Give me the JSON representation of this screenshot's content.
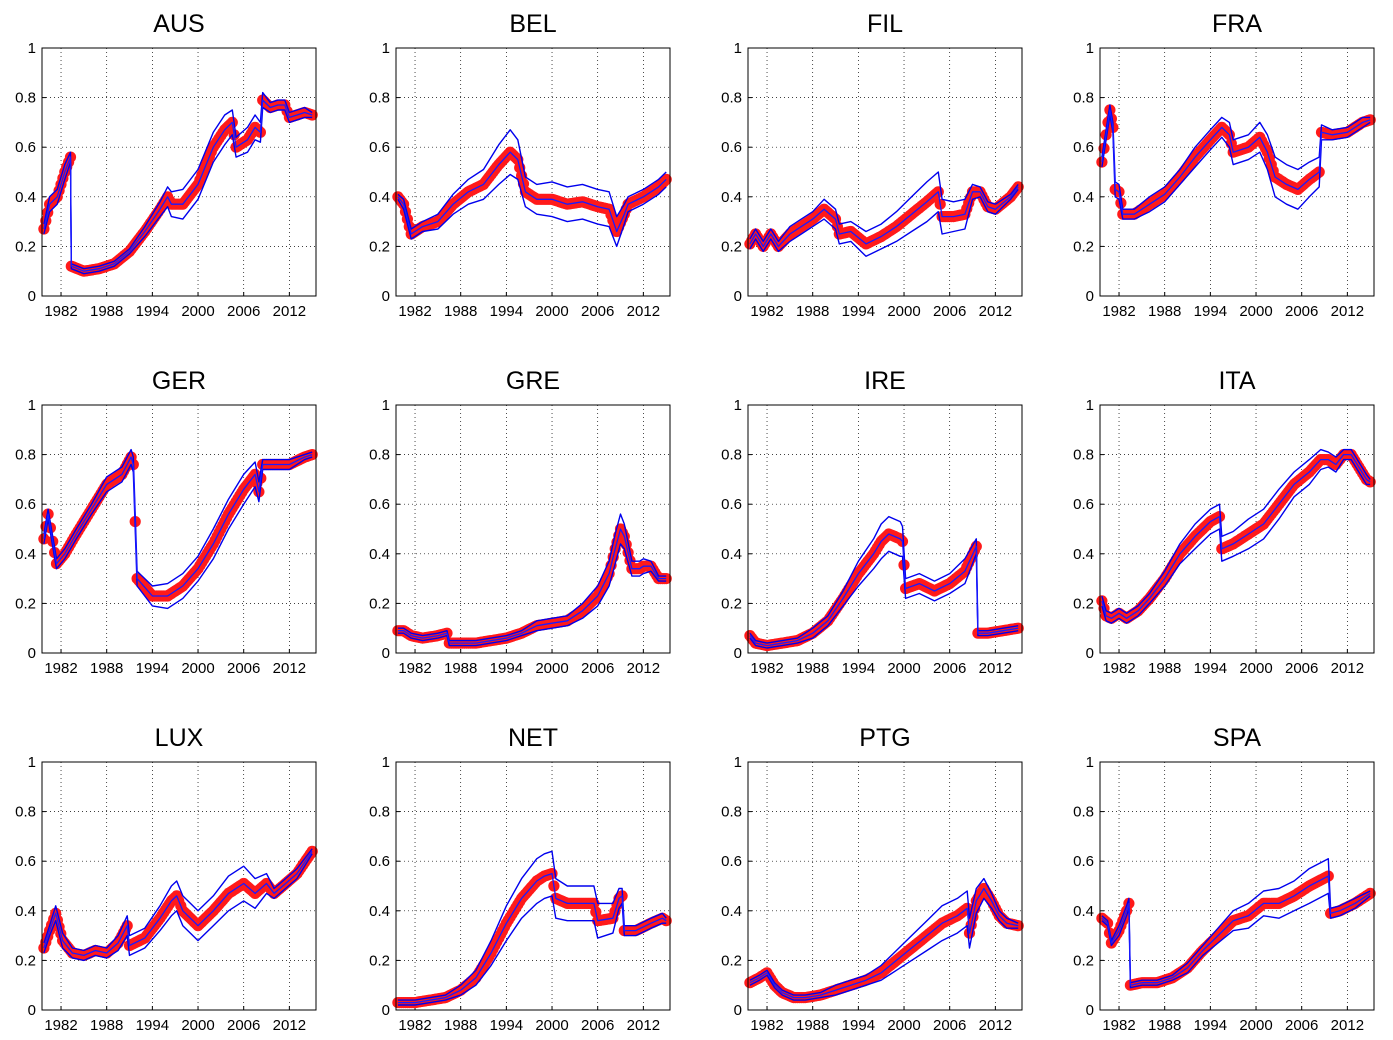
{
  "chart_data": [
    {
      "type": "line",
      "title": "AUS",
      "ylim": [
        0,
        1
      ],
      "xlim": [
        1979.5,
        2015.5
      ],
      "yticks": [
        "0",
        "0.2",
        "0.4",
        "0.6",
        "0.8",
        "1"
      ],
      "xticks": [
        "1982",
        "1988",
        "1994",
        "2000",
        "2006",
        "2012"
      ],
      "x": [
        1979.75,
        1980.5,
        1981.5,
        1982.5,
        1983.25,
        1983.35,
        1985,
        1987,
        1989,
        1991,
        1993,
        1995,
        1996,
        1996.5,
        1998,
        2000,
        2002,
        2003.5,
        2004.5,
        2005,
        2006.5,
        2007.5,
        2008.2,
        2008.5,
        2009.5,
        2010.5,
        2011.4,
        2012,
        2013,
        2014,
        2015
      ],
      "values": [
        0.27,
        0.37,
        0.4,
        0.5,
        0.56,
        0.12,
        0.1,
        0.11,
        0.13,
        0.18,
        0.26,
        0.35,
        0.4,
        0.37,
        0.37,
        0.45,
        0.6,
        0.67,
        0.7,
        0.6,
        0.63,
        0.68,
        0.66,
        0.79,
        0.76,
        0.77,
        0.77,
        0.72,
        0.73,
        0.74,
        0.73
      ],
      "band_width": [
        0.02,
        0.03,
        0.03,
        0.03,
        0.02,
        0.01,
        0.01,
        0.01,
        0.01,
        0.01,
        0.02,
        0.03,
        0.04,
        0.05,
        0.06,
        0.06,
        0.06,
        0.06,
        0.05,
        0.04,
        0.05,
        0.05,
        0.04,
        0.03,
        0.02,
        0.02,
        0.02,
        0.02,
        0.02,
        0.02,
        0.01
      ]
    },
    {
      "type": "line",
      "title": "BEL",
      "ylim": [
        0,
        1
      ],
      "xlim": [
        1979.5,
        2015.5
      ],
      "yticks": [
        "0",
        "0.2",
        "0.4",
        "0.6",
        "0.8",
        "1"
      ],
      "xticks": [
        "1982",
        "1988",
        "1994",
        "2000",
        "2006",
        "2012"
      ],
      "x": [
        1979.75,
        1980.5,
        1981.5,
        1983,
        1985,
        1987,
        1989,
        1991,
        1993,
        1994.5,
        1995.5,
        1996.5,
        1998,
        2000,
        2002,
        2004,
        2006,
        2007.5,
        2008.5,
        2009.5,
        2010,
        2012,
        2014,
        2015
      ],
      "values": [
        0.4,
        0.37,
        0.25,
        0.28,
        0.3,
        0.37,
        0.42,
        0.45,
        0.53,
        0.58,
        0.55,
        0.42,
        0.39,
        0.39,
        0.37,
        0.38,
        0.36,
        0.35,
        0.26,
        0.33,
        0.37,
        0.4,
        0.44,
        0.47
      ],
      "band_width": [
        0.01,
        0.02,
        0.02,
        0.02,
        0.03,
        0.04,
        0.05,
        0.06,
        0.08,
        0.09,
        0.08,
        0.06,
        0.06,
        0.07,
        0.07,
        0.07,
        0.07,
        0.07,
        0.06,
        0.04,
        0.03,
        0.03,
        0.03,
        0.03
      ]
    },
    {
      "type": "line",
      "title": "FIL",
      "ylim": [
        0,
        1
      ],
      "xlim": [
        1979.5,
        2015.5
      ],
      "yticks": [
        "0",
        "0.2",
        "0.4",
        "0.6",
        "0.8",
        "1"
      ],
      "xticks": [
        "1982",
        "1988",
        "1994",
        "2000",
        "2006",
        "2012"
      ],
      "x": [
        1979.75,
        1980.5,
        1981.5,
        1982.5,
        1983.5,
        1985,
        1986.5,
        1988,
        1989.5,
        1991,
        1991.5,
        1993,
        1995,
        1997,
        1999,
        2001,
        2003,
        2004.5,
        2005,
        2006.5,
        2008,
        2009,
        2010,
        2011,
        2012,
        2014,
        2015
      ],
      "values": [
        0.21,
        0.25,
        0.2,
        0.25,
        0.2,
        0.25,
        0.28,
        0.31,
        0.35,
        0.31,
        0.25,
        0.26,
        0.21,
        0.24,
        0.28,
        0.33,
        0.38,
        0.42,
        0.32,
        0.32,
        0.33,
        0.42,
        0.42,
        0.36,
        0.35,
        0.4,
        0.44
      ],
      "band_width": [
        0.02,
        0.02,
        0.02,
        0.02,
        0.02,
        0.03,
        0.03,
        0.03,
        0.04,
        0.04,
        0.04,
        0.04,
        0.05,
        0.05,
        0.06,
        0.07,
        0.08,
        0.08,
        0.07,
        0.06,
        0.06,
        0.03,
        0.02,
        0.02,
        0.02,
        0.01,
        0.01
      ]
    },
    {
      "type": "line",
      "title": "FRA",
      "ylim": [
        0,
        1
      ],
      "xlim": [
        1979.5,
        2015.5
      ],
      "yticks": [
        "0",
        "0.2",
        "0.4",
        "0.6",
        "0.8",
        "1"
      ],
      "xticks": [
        "1982",
        "1988",
        "1994",
        "2000",
        "2006",
        "2012"
      ],
      "x": [
        1979.75,
        1980.3,
        1980.8,
        1981.2,
        1981.5,
        1982,
        1982.5,
        1984,
        1986,
        1988,
        1990,
        1992,
        1994,
        1995.5,
        1996.5,
        1997,
        1999,
        2000.5,
        2001.5,
        2002.5,
        2004,
        2005.5,
        2007,
        2008.3,
        2008.6,
        2010,
        2012,
        2014,
        2015
      ],
      "values": [
        0.54,
        0.65,
        0.75,
        0.68,
        0.43,
        0.42,
        0.33,
        0.33,
        0.37,
        0.41,
        0.48,
        0.56,
        0.63,
        0.68,
        0.65,
        0.58,
        0.6,
        0.64,
        0.58,
        0.48,
        0.45,
        0.43,
        0.47,
        0.5,
        0.66,
        0.65,
        0.66,
        0.7,
        0.71
      ],
      "band_width": [
        0.02,
        0.02,
        0.02,
        0.02,
        0.03,
        0.03,
        0.02,
        0.02,
        0.03,
        0.03,
        0.03,
        0.04,
        0.04,
        0.04,
        0.05,
        0.05,
        0.05,
        0.06,
        0.07,
        0.08,
        0.08,
        0.08,
        0.07,
        0.06,
        0.03,
        0.02,
        0.02,
        0.02,
        0.01
      ]
    },
    {
      "type": "line",
      "title": "GER",
      "ylim": [
        0,
        1
      ],
      "xlim": [
        1979.5,
        2015.5
      ],
      "yticks": [
        "0",
        "0.2",
        "0.4",
        "0.6",
        "0.8",
        "1"
      ],
      "xticks": [
        "1982",
        "1988",
        "1994",
        "2000",
        "2006",
        "2012"
      ],
      "x": [
        1979.75,
        1980.3,
        1980.9,
        1981.4,
        1982.5,
        1984,
        1986,
        1988,
        1990,
        1991.2,
        1991.5,
        1992,
        1994,
        1996,
        1998,
        2000,
        2002,
        2004,
        2006,
        2007.5,
        2008,
        2008.5,
        2010,
        2012,
        2014,
        2015
      ],
      "values": [
        0.46,
        0.56,
        0.45,
        0.36,
        0.4,
        0.48,
        0.58,
        0.68,
        0.72,
        0.79,
        0.76,
        0.3,
        0.23,
        0.23,
        0.27,
        0.34,
        0.44,
        0.56,
        0.66,
        0.72,
        0.65,
        0.76,
        0.76,
        0.76,
        0.79,
        0.8
      ],
      "band_width": [
        0.02,
        0.02,
        0.02,
        0.02,
        0.02,
        0.02,
        0.02,
        0.03,
        0.03,
        0.03,
        0.03,
        0.03,
        0.04,
        0.05,
        0.05,
        0.05,
        0.06,
        0.06,
        0.06,
        0.05,
        0.04,
        0.02,
        0.02,
        0.02,
        0.01,
        0.01
      ]
    },
    {
      "type": "line",
      "title": "GRE",
      "ylim": [
        0,
        1
      ],
      "xlim": [
        1979.5,
        2015.5
      ],
      "yticks": [
        "0",
        "0.2",
        "0.4",
        "0.6",
        "0.8",
        "1"
      ],
      "xticks": [
        "1982",
        "1988",
        "1994",
        "2000",
        "2006",
        "2012"
      ],
      "x": [
        1979.75,
        1980.5,
        1981.5,
        1983,
        1985,
        1986.2,
        1986.5,
        1988,
        1990,
        1992,
        1994,
        1996,
        1998,
        2000,
        2002,
        2004,
        2006,
        2007.5,
        2008.3,
        2009,
        2009.5,
        2010.5,
        2011.5,
        2012,
        2013,
        2014,
        2015
      ],
      "values": [
        0.09,
        0.09,
        0.07,
        0.06,
        0.07,
        0.08,
        0.04,
        0.04,
        0.04,
        0.05,
        0.06,
        0.08,
        0.11,
        0.12,
        0.13,
        0.17,
        0.23,
        0.32,
        0.42,
        0.5,
        0.47,
        0.34,
        0.34,
        0.35,
        0.35,
        0.3,
        0.3
      ],
      "band_width": [
        0.01,
        0.01,
        0.01,
        0.01,
        0.01,
        0.01,
        0.01,
        0.01,
        0.01,
        0.01,
        0.01,
        0.01,
        0.02,
        0.02,
        0.02,
        0.03,
        0.04,
        0.05,
        0.06,
        0.06,
        0.05,
        0.03,
        0.03,
        0.03,
        0.02,
        0.01,
        0.01
      ]
    },
    {
      "type": "line",
      "title": "IRE",
      "ylim": [
        0,
        1
      ],
      "xlim": [
        1979.5,
        2015.5
      ],
      "yticks": [
        "0",
        "0.2",
        "0.4",
        "0.6",
        "0.8",
        "1"
      ],
      "xticks": [
        "1982",
        "1988",
        "1994",
        "2000",
        "2006",
        "2012"
      ],
      "x": [
        1979.75,
        1980.5,
        1982,
        1984,
        1986,
        1988,
        1990,
        1992,
        1994,
        1996,
        1997,
        1998,
        1999.5,
        1999.8,
        2000.2,
        2002,
        2004,
        2006,
        2008,
        2009.5,
        2009.7,
        2011,
        2013,
        2015
      ],
      "values": [
        0.07,
        0.04,
        0.03,
        0.04,
        0.05,
        0.08,
        0.13,
        0.22,
        0.32,
        0.4,
        0.45,
        0.48,
        0.46,
        0.45,
        0.26,
        0.28,
        0.25,
        0.28,
        0.33,
        0.43,
        0.08,
        0.08,
        0.09,
        0.1
      ],
      "band_width": [
        0.01,
        0.01,
        0.01,
        0.01,
        0.01,
        0.02,
        0.02,
        0.03,
        0.05,
        0.06,
        0.07,
        0.07,
        0.07,
        0.06,
        0.04,
        0.04,
        0.04,
        0.04,
        0.05,
        0.03,
        0.01,
        0.01,
        0.01,
        0.01
      ]
    },
    {
      "type": "line",
      "title": "ITA",
      "ylim": [
        0,
        1
      ],
      "xlim": [
        1979.5,
        2015.5
      ],
      "yticks": [
        "0",
        "0.2",
        "0.4",
        "0.6",
        "0.8",
        "1"
      ],
      "xticks": [
        "1982",
        "1988",
        "1994",
        "2000",
        "2006",
        "2012"
      ],
      "x": [
        1979.75,
        1980.3,
        1981,
        1982,
        1983,
        1984.5,
        1986,
        1988,
        1990,
        1992,
        1994,
        1995.2,
        1995.5,
        1997,
        1999,
        2001,
        2003,
        2005,
        2007,
        2008.5,
        2009.5,
        2010.5,
        2011.5,
        2012.5,
        2013.5,
        2014.5,
        2015
      ],
      "values": [
        0.21,
        0.15,
        0.14,
        0.16,
        0.14,
        0.17,
        0.22,
        0.3,
        0.4,
        0.47,
        0.53,
        0.55,
        0.42,
        0.44,
        0.48,
        0.52,
        0.6,
        0.68,
        0.73,
        0.78,
        0.78,
        0.76,
        0.8,
        0.8,
        0.75,
        0.7,
        0.69
      ],
      "band_width": [
        0.02,
        0.02,
        0.02,
        0.02,
        0.02,
        0.02,
        0.02,
        0.03,
        0.04,
        0.05,
        0.05,
        0.05,
        0.05,
        0.05,
        0.06,
        0.06,
        0.06,
        0.05,
        0.05,
        0.04,
        0.03,
        0.03,
        0.02,
        0.02,
        0.02,
        0.02,
        0.01
      ]
    },
    {
      "type": "line",
      "title": "LUX",
      "ylim": [
        0,
        1
      ],
      "xlim": [
        1979.5,
        2015.5
      ],
      "yticks": [
        "0",
        "0.2",
        "0.4",
        "0.6",
        "0.8",
        "1"
      ],
      "xticks": [
        "1982",
        "1988",
        "1994",
        "2000",
        "2006",
        "2012"
      ],
      "x": [
        1979.75,
        1980.5,
        1981.3,
        1982.2,
        1983.5,
        1985,
        1986.5,
        1988,
        1989.5,
        1990.7,
        1991,
        1993,
        1995,
        1996.5,
        1997.2,
        1998,
        2000,
        2002,
        2004,
        2006,
        2007.5,
        2009,
        2010,
        2011.5,
        2013,
        2015
      ],
      "values": [
        0.25,
        0.32,
        0.39,
        0.28,
        0.23,
        0.22,
        0.24,
        0.23,
        0.27,
        0.34,
        0.26,
        0.29,
        0.37,
        0.44,
        0.46,
        0.4,
        0.34,
        0.4,
        0.47,
        0.51,
        0.47,
        0.51,
        0.47,
        0.51,
        0.55,
        0.64
      ],
      "band_width": [
        0.02,
        0.02,
        0.03,
        0.03,
        0.02,
        0.02,
        0.02,
        0.02,
        0.03,
        0.04,
        0.04,
        0.04,
        0.05,
        0.06,
        0.06,
        0.06,
        0.06,
        0.06,
        0.07,
        0.07,
        0.06,
        0.04,
        0.02,
        0.02,
        0.02,
        0.01
      ]
    },
    {
      "type": "line",
      "title": "NET",
      "ylim": [
        0,
        1
      ],
      "xlim": [
        1979.5,
        2015.5
      ],
      "yticks": [
        "0",
        "0.2",
        "0.4",
        "0.6",
        "0.8",
        "1"
      ],
      "xticks": [
        "1982",
        "1988",
        "1994",
        "2000",
        "2006",
        "2012"
      ],
      "x": [
        1979.75,
        1982,
        1984,
        1986,
        1988,
        1990,
        1992,
        1994,
        1996,
        1998,
        1999,
        2000,
        2000.5,
        2002,
        2004,
        2005.5,
        2006,
        2008,
        2008.8,
        2009.2,
        2009.5,
        2011,
        2013,
        2014.5,
        2015
      ],
      "values": [
        0.03,
        0.03,
        0.04,
        0.05,
        0.08,
        0.13,
        0.23,
        0.35,
        0.45,
        0.52,
        0.54,
        0.55,
        0.45,
        0.43,
        0.43,
        0.43,
        0.36,
        0.37,
        0.45,
        0.46,
        0.32,
        0.32,
        0.35,
        0.37,
        0.36
      ],
      "band_width": [
        0.01,
        0.01,
        0.01,
        0.01,
        0.02,
        0.03,
        0.05,
        0.07,
        0.08,
        0.09,
        0.09,
        0.09,
        0.08,
        0.07,
        0.07,
        0.07,
        0.07,
        0.06,
        0.04,
        0.03,
        0.02,
        0.02,
        0.02,
        0.02,
        0.01
      ]
    },
    {
      "type": "line",
      "title": "PTG",
      "ylim": [
        0,
        1
      ],
      "xlim": [
        1979.5,
        2015.5
      ],
      "yticks": [
        "0",
        "0.2",
        "0.4",
        "0.6",
        "0.8",
        "1"
      ],
      "xticks": [
        "1982",
        "1988",
        "1994",
        "2000",
        "2006",
        "2012"
      ],
      "x": [
        1979.75,
        1981,
        1982,
        1983,
        1984,
        1985.5,
        1987,
        1989,
        1991,
        1993,
        1995,
        1997,
        1999,
        2001,
        2003,
        2005,
        2007,
        2008.3,
        2008.6,
        2009.5,
        2010.5,
        2011.5,
        2012.5,
        2013.5,
        2015
      ],
      "values": [
        0.11,
        0.13,
        0.15,
        0.1,
        0.07,
        0.05,
        0.05,
        0.06,
        0.08,
        0.1,
        0.12,
        0.15,
        0.2,
        0.25,
        0.3,
        0.35,
        0.38,
        0.41,
        0.31,
        0.44,
        0.49,
        0.44,
        0.38,
        0.35,
        0.34
      ],
      "band_width": [
        0.01,
        0.01,
        0.01,
        0.01,
        0.01,
        0.01,
        0.01,
        0.01,
        0.02,
        0.02,
        0.02,
        0.03,
        0.04,
        0.05,
        0.06,
        0.07,
        0.07,
        0.07,
        0.06,
        0.05,
        0.04,
        0.03,
        0.02,
        0.02,
        0.01
      ]
    },
    {
      "type": "line",
      "title": "SPA",
      "ylim": [
        0,
        1
      ],
      "xlim": [
        1979.5,
        2015.5
      ],
      "yticks": [
        "0",
        "0.2",
        "0.4",
        "0.6",
        "0.8",
        "1"
      ],
      "xticks": [
        "1982",
        "1988",
        "1994",
        "2000",
        "2006",
        "2012"
      ],
      "x": [
        1979.75,
        1980.5,
        1981,
        1982,
        1983,
        1983.3,
        1983.5,
        1985,
        1987,
        1989,
        1991,
        1993,
        1995,
        1997,
        1999,
        2001,
        2003,
        2005,
        2007,
        2009.5,
        2009.8,
        2011,
        2013,
        2015
      ],
      "values": [
        0.37,
        0.35,
        0.27,
        0.32,
        0.4,
        0.43,
        0.1,
        0.11,
        0.11,
        0.13,
        0.17,
        0.24,
        0.3,
        0.36,
        0.38,
        0.43,
        0.43,
        0.46,
        0.5,
        0.54,
        0.39,
        0.4,
        0.43,
        0.47
      ],
      "band_width": [
        0.01,
        0.01,
        0.01,
        0.02,
        0.02,
        0.02,
        0.01,
        0.01,
        0.01,
        0.01,
        0.02,
        0.02,
        0.03,
        0.04,
        0.05,
        0.05,
        0.06,
        0.06,
        0.07,
        0.07,
        0.02,
        0.02,
        0.02,
        0.01
      ]
    }
  ]
}
